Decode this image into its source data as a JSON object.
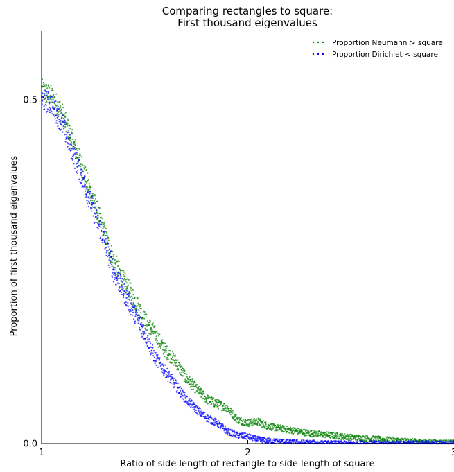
{
  "chart_data": {
    "type": "scatter",
    "title_line1": "Comparing rectangles to square:",
    "title_line2": "First thousand eigenvalues",
    "xlabel": "Ratio of side length of rectangle to side length of square",
    "ylabel": "Proportion of first thousand eigenvalues",
    "xlim": [
      1,
      3
    ],
    "ylim": [
      0.0,
      0.6
    ],
    "xticks": [
      1,
      2,
      3
    ],
    "xtick_labels": [
      "1",
      "2",
      "3"
    ],
    "yticks": [
      0.0,
      0.5
    ],
    "ytick_labels": [
      "0.0",
      "0.5"
    ],
    "legend_position": "top-right",
    "series": [
      {
        "name": "Proportion Neumann  >  square",
        "color": "#008000",
        "curve": [
          [
            1.0,
            0.515
          ],
          [
            1.05,
            0.505
          ],
          [
            1.1,
            0.48
          ],
          [
            1.15,
            0.44
          ],
          [
            1.2,
            0.4
          ],
          [
            1.25,
            0.355
          ],
          [
            1.3,
            0.31
          ],
          [
            1.35,
            0.265
          ],
          [
            1.4,
            0.235
          ],
          [
            1.45,
            0.21
          ],
          [
            1.5,
            0.18
          ],
          [
            1.55,
            0.16
          ],
          [
            1.6,
            0.135
          ],
          [
            1.65,
            0.12
          ],
          [
            1.7,
            0.095
          ],
          [
            1.75,
            0.08
          ],
          [
            1.8,
            0.065
          ],
          [
            1.85,
            0.058
          ],
          [
            1.9,
            0.052
          ],
          [
            1.95,
            0.035
          ],
          [
            2.0,
            0.03
          ],
          [
            2.05,
            0.032
          ],
          [
            2.1,
            0.025
          ],
          [
            2.2,
            0.02
          ],
          [
            2.3,
            0.015
          ],
          [
            2.4,
            0.012
          ],
          [
            2.5,
            0.009
          ],
          [
            2.6,
            0.007
          ],
          [
            2.7,
            0.005
          ],
          [
            2.8,
            0.003
          ],
          [
            2.9,
            0.002
          ],
          [
            3.0,
            0.001
          ]
        ]
      },
      {
        "name": "Proportion Dirichlet  <  square",
        "color": "#0000ff",
        "curve": [
          [
            1.0,
            0.5
          ],
          [
            1.05,
            0.495
          ],
          [
            1.1,
            0.465
          ],
          [
            1.15,
            0.425
          ],
          [
            1.2,
            0.385
          ],
          [
            1.25,
            0.34
          ],
          [
            1.3,
            0.3
          ],
          [
            1.35,
            0.25
          ],
          [
            1.4,
            0.22
          ],
          [
            1.45,
            0.19
          ],
          [
            1.5,
            0.16
          ],
          [
            1.55,
            0.125
          ],
          [
            1.6,
            0.105
          ],
          [
            1.65,
            0.085
          ],
          [
            1.7,
            0.065
          ],
          [
            1.75,
            0.05
          ],
          [
            1.8,
            0.038
          ],
          [
            1.85,
            0.03
          ],
          [
            1.9,
            0.018
          ],
          [
            1.95,
            0.012
          ],
          [
            2.0,
            0.01
          ],
          [
            2.05,
            0.006
          ],
          [
            2.1,
            0.004
          ],
          [
            2.2,
            0.002
          ],
          [
            2.3,
            0.001
          ],
          [
            2.4,
            0.0
          ],
          [
            3.0,
            0.0
          ]
        ]
      }
    ]
  }
}
